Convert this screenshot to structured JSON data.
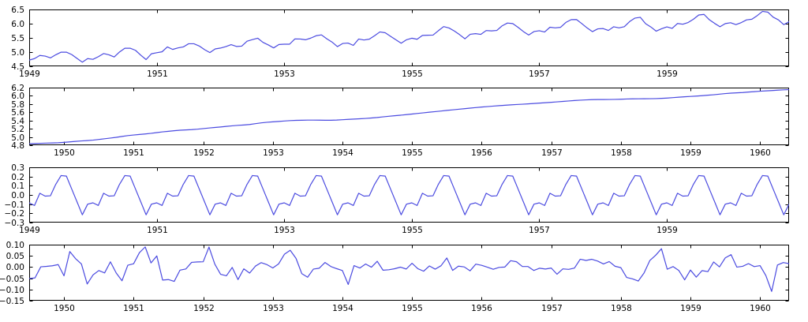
{
  "figure": {
    "description": "Seasonal decomposition of monthly airline passenger counts (natural log scale), 1949-1960: observed, trend, seasonal and residual panels",
    "background": "#ffffff"
  },
  "colors": {
    "line": "#4b4be0",
    "axis": "#000000",
    "tick_label": "#000000"
  },
  "chart_data": [
    {
      "id": "observed",
      "type": "line",
      "x_unit": "decimal_year_monthly",
      "x_start": 1949.0,
      "xlim": [
        1949.0,
        1960.9167
      ],
      "ylim": [
        4.5,
        6.5
      ],
      "grid": false,
      "legend": "none",
      "xticks": [
        {
          "v": 1949,
          "label": "1949"
        },
        {
          "v": 1951,
          "label": "1951"
        },
        {
          "v": 1953,
          "label": "1953"
        },
        {
          "v": 1955,
          "label": "1955"
        },
        {
          "v": 1957,
          "label": "1957"
        },
        {
          "v": 1959,
          "label": "1959"
        }
      ],
      "yticks": [
        {
          "v": 6.5,
          "label": "6.5"
        },
        {
          "v": 6.0,
          "label": "6.0"
        },
        {
          "v": 5.5,
          "label": "5.5"
        },
        {
          "v": 5.0,
          "label": "5.0"
        },
        {
          "v": 4.5,
          "label": "4.5"
        }
      ],
      "values": [
        4.7185,
        4.7707,
        4.8828,
        4.8598,
        4.7958,
        4.9053,
        4.9972,
        4.9972,
        4.9127,
        4.7791,
        4.6444,
        4.7707,
        4.7449,
        4.8363,
        4.9488,
        4.9053,
        4.8283,
        5.0039,
        5.1358,
        5.1358,
        5.0626,
        4.8903,
        4.7362,
        4.9416,
        4.9767,
        5.0106,
        5.1818,
        5.0938,
        5.1475,
        5.1818,
        5.2933,
        5.2933,
        5.2149,
        5.0876,
        4.9836,
        5.112,
        5.1417,
        5.193,
        5.2627,
        5.1985,
        5.2095,
        5.3845,
        5.4381,
        5.4889,
        5.3423,
        5.2523,
        5.1475,
        5.2679,
        5.2781,
        5.2781,
        5.4638,
        5.4596,
        5.4337,
        5.4931,
        5.5759,
        5.6058,
        5.4681,
        5.3519,
        5.193,
        5.3033,
        5.3181,
        5.2364,
        5.4596,
        5.425,
        5.4553,
        5.5759,
        5.7104,
        5.6802,
        5.5568,
        5.4337,
        5.3132,
        5.4337,
        5.4889,
        5.451,
        5.5872,
        5.5947,
        5.5984,
        5.7526,
        5.8972,
        5.8493,
        5.743,
        5.6131,
        5.4681,
        5.6276,
        5.649,
        5.624,
        5.7589,
        5.7462,
        5.7621,
        5.9243,
        6.0234,
        6.0039,
        5.8721,
        5.7236,
        5.6021,
        5.7236,
        5.7526,
        5.7071,
        5.8749,
        5.8522,
        5.8721,
        6.045,
        6.142,
        6.1463,
        6.0014,
        5.8493,
        5.7203,
        5.8171,
        5.8289,
        5.7621,
        5.8916,
        5.8522,
        5.8944,
        6.0753,
        6.1964,
        6.2246,
        6.0014,
        5.8833,
        5.7366,
        5.8201,
        5.8861,
        5.8348,
        6.0064,
        5.9814,
        6.0403,
        6.157,
        6.3063,
        6.3261,
        6.1377,
        6.0088,
        5.8916,
        6.0039,
        6.0331,
        5.9687,
        6.0379,
        6.1334,
        6.157,
        6.2823,
        6.4329,
        6.4069,
        6.2305,
        6.1334,
        5.9661,
        6.0684
      ]
    },
    {
      "id": "trend",
      "type": "line",
      "derived_from": "observed",
      "method": "12-month centered moving average of observed",
      "x_unit": "decimal_year_monthly",
      "x_start": 1949.5,
      "xlim": [
        1949.5,
        1960.4167
      ],
      "ylim": [
        4.8,
        6.2
      ],
      "grid": false,
      "legend": "none",
      "value_range_shown": [
        4.84,
        6.15
      ],
      "xticks": [
        {
          "v": 1950,
          "label": "1950"
        },
        {
          "v": 1951,
          "label": "1951"
        },
        {
          "v": 1952,
          "label": "1952"
        },
        {
          "v": 1953,
          "label": "1953"
        },
        {
          "v": 1954,
          "label": "1954"
        },
        {
          "v": 1955,
          "label": "1955"
        },
        {
          "v": 1956,
          "label": "1956"
        },
        {
          "v": 1957,
          "label": "1957"
        },
        {
          "v": 1958,
          "label": "1958"
        },
        {
          "v": 1959,
          "label": "1959"
        },
        {
          "v": 1960,
          "label": "1960"
        }
      ],
      "yticks": [
        {
          "v": 6.2,
          "label": "6.2"
        },
        {
          "v": 6.0,
          "label": "6.0"
        },
        {
          "v": 5.8,
          "label": "5.8"
        },
        {
          "v": 5.6,
          "label": "5.6"
        },
        {
          "v": 5.4,
          "label": "5.4"
        },
        {
          "v": 5.2,
          "label": "5.2"
        },
        {
          "v": 5.0,
          "label": "5.0"
        },
        {
          "v": 4.8,
          "label": "4.8"
        }
      ]
    },
    {
      "id": "seasonal",
      "type": "line",
      "derived_from": "observed",
      "method": "monthly means of detrended observed, mean-centered, repeating every 12 months",
      "x_unit": "decimal_year_monthly",
      "x_start": 1949.0,
      "xlim": [
        1949.0,
        1960.9167
      ],
      "ylim": [
        -0.3,
        0.3
      ],
      "grid": false,
      "legend": "none",
      "monthly_pattern": [
        -0.085,
        -0.114,
        0.019,
        -0.013,
        -0.009,
        0.116,
        0.21,
        0.209,
        0.067,
        -0.07,
        -0.21,
        -0.093
      ],
      "xticks": [
        {
          "v": 1949,
          "label": "1949"
        },
        {
          "v": 1951,
          "label": "1951"
        },
        {
          "v": 1953,
          "label": "1953"
        },
        {
          "v": 1955,
          "label": "1955"
        },
        {
          "v": 1957,
          "label": "1957"
        },
        {
          "v": 1959,
          "label": "1959"
        }
      ],
      "yticks": [
        {
          "v": 0.3,
          "label": "0.3"
        },
        {
          "v": 0.2,
          "label": "0.2"
        },
        {
          "v": 0.1,
          "label": "0.1"
        },
        {
          "v": 0.0,
          "label": "0.0"
        },
        {
          "v": -0.1,
          "label": "−0.1"
        },
        {
          "v": -0.2,
          "label": "−0.2"
        },
        {
          "v": -0.3,
          "label": "−0.3"
        }
      ]
    },
    {
      "id": "residual",
      "type": "line",
      "derived_from": "observed",
      "method": "observed − trend − seasonal",
      "x_unit": "decimal_year_monthly",
      "x_start": 1949.5,
      "xlim": [
        1949.5,
        1960.4167
      ],
      "ylim": [
        -0.15,
        0.1
      ],
      "grid": false,
      "legend": "none",
      "value_range_shown": [
        -0.11,
        0.09
      ],
      "xticks": [
        {
          "v": 1950,
          "label": "1950"
        },
        {
          "v": 1951,
          "label": "1951"
        },
        {
          "v": 1952,
          "label": "1952"
        },
        {
          "v": 1953,
          "label": "1953"
        },
        {
          "v": 1954,
          "label": "1954"
        },
        {
          "v": 1955,
          "label": "1955"
        },
        {
          "v": 1956,
          "label": "1956"
        },
        {
          "v": 1957,
          "label": "1957"
        },
        {
          "v": 1958,
          "label": "1958"
        },
        {
          "v": 1959,
          "label": "1959"
        },
        {
          "v": 1960,
          "label": "1960"
        }
      ],
      "yticks": [
        {
          "v": 0.1,
          "label": "0.10"
        },
        {
          "v": 0.05,
          "label": "0.05"
        },
        {
          "v": 0.0,
          "label": "0.00"
        },
        {
          "v": -0.05,
          "label": "−0.05"
        },
        {
          "v": -0.1,
          "label": "−0.10"
        },
        {
          "v": -0.15,
          "label": "−0.15"
        }
      ]
    }
  ]
}
